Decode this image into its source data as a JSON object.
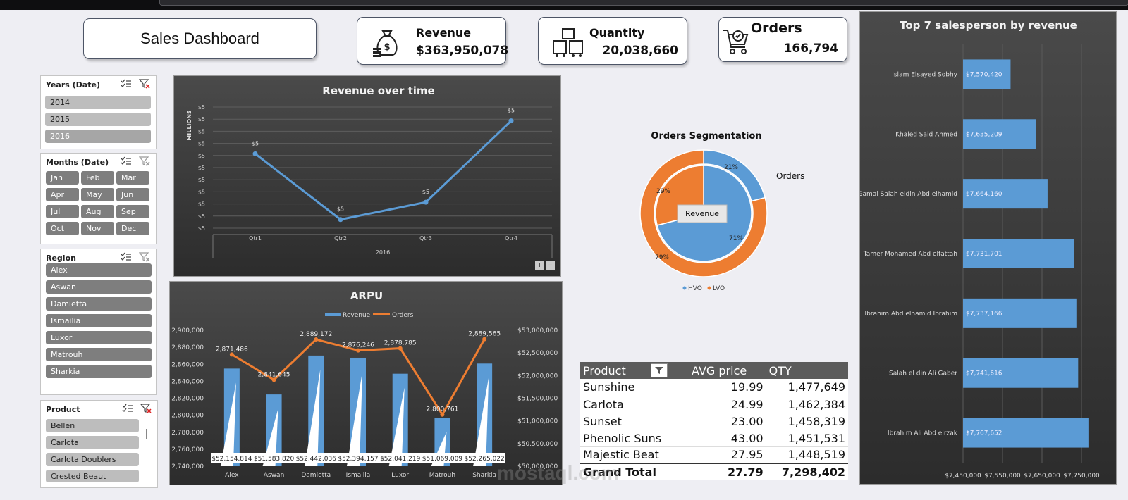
{
  "dashboard": {
    "title": "Sales Dashboard",
    "kpis": [
      {
        "label": "Revenue",
        "value": "$363,950,078",
        "icon": "money-bag-icon"
      },
      {
        "label": "Quantity",
        "value": "20,038,660",
        "icon": "boxes-icon"
      },
      {
        "label": "Orders",
        "value": "166,794",
        "icon": "cart-icon"
      }
    ]
  },
  "slicers": {
    "years": {
      "title": "Years (Date)",
      "items": [
        "2014",
        "2015",
        "2016"
      ]
    },
    "months": {
      "title": "Months (Date)",
      "items": [
        "Jan",
        "Feb",
        "Mar",
        "Apr",
        "May",
        "Jun",
        "Jul",
        "Aug",
        "Sep",
        "Oct",
        "Nov",
        "Dec"
      ]
    },
    "region": {
      "title": "Region",
      "items": [
        "Alex",
        "Aswan",
        "Damietta",
        "Ismailia",
        "Luxor",
        "Matrouh",
        "Sharkia"
      ]
    },
    "product": {
      "title": "Product",
      "items": [
        "Bellen",
        "Carlota",
        "Carlota Doublers",
        "Crested Beaut"
      ]
    }
  },
  "chart_data": [
    {
      "id": "revenue_over_time",
      "type": "line",
      "title": "Revenue over time",
      "ylabel": "MILLIONS",
      "y_tick_labels": [
        "$5",
        "$5",
        "$5",
        "$5",
        "$5",
        "$5",
        "$5",
        "$5",
        "$5",
        "$5",
        "$5"
      ],
      "categories": [
        "Qtr1",
        "Qtr2",
        "Qtr3",
        "Qtr4"
      ],
      "x_group_label": "2016",
      "values": [
        5.28,
        4.9,
        5.0,
        5.47
      ],
      "data_labels": [
        "$5",
        "$5",
        "$5",
        "$5"
      ],
      "color": "#5b9bd5",
      "controls": [
        "+",
        "−"
      ]
    },
    {
      "id": "orders_segmentation",
      "type": "pie",
      "title": "Orders Segmentation",
      "inner_ring": {
        "label": "Revenue",
        "slices": [
          {
            "name": "HVO",
            "value": 71,
            "label": "71%"
          },
          {
            "name": "LVO",
            "value": 29,
            "label": "29%"
          }
        ]
      },
      "outer_ring": {
        "label": "Orders",
        "slices": [
          {
            "name": "HVO",
            "value": 21,
            "label": "21%"
          },
          {
            "name": "LVO",
            "value": 79,
            "label": "79%"
          }
        ]
      },
      "legend": [
        {
          "name": "HVO",
          "color": "#5b9bd5"
        },
        {
          "name": "LVO",
          "color": "#ed7d31"
        }
      ]
    },
    {
      "id": "arpu",
      "type": "bar",
      "title": "ARPU",
      "categories": [
        "Alex",
        "Aswan",
        "Damietta",
        "Ismailia",
        "Luxor",
        "Matrouh",
        "Sharkia"
      ],
      "series": [
        {
          "name": "Revenue",
          "axis": "right",
          "values": [
            52154814,
            51583820,
            52442036,
            52394157,
            52041219,
            51069009,
            52265022
          ],
          "labels": [
            "$52,154,814",
            "$51,583,820",
            "$52,442,036",
            "$52,394,157",
            "$52,041,219",
            "$51,069,009",
            "$52,265,022"
          ],
          "color": "#5b9bd5"
        },
        {
          "name": "Orders",
          "axis": "left",
          "values": [
            2871486,
            2841645,
            2889172,
            2876246,
            2878785,
            2800761,
            2889565
          ],
          "labels": [
            "2,871,486",
            "2,841,645",
            "2,889,172",
            "2,876,246",
            "2,878,785",
            "2,800,761",
            "2,889,565"
          ],
          "color": "#ed7d31"
        }
      ],
      "left_ticks": [
        "2,900,000",
        "2,880,000",
        "2,860,000",
        "2,840,000",
        "2,820,000",
        "2,800,000",
        "2,780,000",
        "2,760,000",
        "2,740,000"
      ],
      "right_ticks": [
        "$53,000,000",
        "$52,500,000",
        "$52,000,000",
        "$51,500,000",
        "$51,000,000",
        "$50,500,000",
        "$50,000,000"
      ],
      "left_ylim": [
        2740000,
        2900000
      ],
      "right_ylim": [
        50000000,
        53000000
      ]
    },
    {
      "id": "top_salesperson",
      "type": "bar",
      "orientation": "horizontal",
      "title": "Top 7 salesperson by revenue",
      "categories": [
        "Islam Elsayed Sobhy",
        "Khaled Said Ahmed",
        "Gamal Salah eldin Abd elhamid",
        "Tamer Mohamed Abd elfattah",
        "Ibrahim Abd elhamid Ibrahim",
        "Salah el din Ali Gaber",
        "Ibrahim Ali Abd elrzak"
      ],
      "values": [
        7570420,
        7635209,
        7664160,
        7731701,
        7737166,
        7741616,
        7767652
      ],
      "labels": [
        "$7,570,420",
        "$7,635,209",
        "$7,664,160",
        "$7,731,701",
        "$7,737,166",
        "$7,741,616",
        "$7,767,652"
      ],
      "x_ticks": [
        "$7,450,000",
        "$7,550,000",
        "$7,650,000",
        "$7,750,000"
      ],
      "xlim": [
        7450000,
        7800000
      ],
      "color": "#5b9bd5"
    }
  ],
  "product_table": {
    "headers": [
      "Product",
      "AVG price",
      "QTY"
    ],
    "rows": [
      [
        "Sunshine",
        "19.99",
        "1,477,649"
      ],
      [
        "Carlota",
        "24.99",
        "1,462,384"
      ],
      [
        "Sunset",
        "23.00",
        "1,458,319"
      ],
      [
        "Phenolic Suns",
        "43.00",
        "1,451,531"
      ],
      [
        "Majestic Beat",
        "27.95",
        "1,448,519"
      ]
    ],
    "total": [
      "Grand Total",
      "27.79",
      "7,298,402"
    ]
  },
  "watermark": "mostaql.com"
}
